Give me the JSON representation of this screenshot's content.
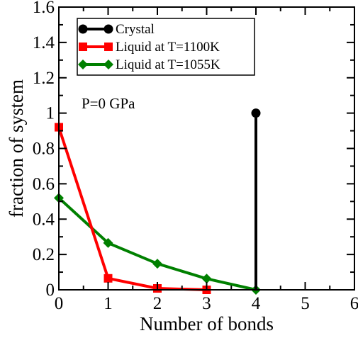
{
  "chart_data": {
    "type": "line",
    "xlabel": "Number of bonds",
    "ylabel": "fraction of system",
    "xlim": [
      0,
      6
    ],
    "ylim": [
      0,
      1.6
    ],
    "x_ticks": [
      0,
      1,
      2,
      3,
      4,
      5,
      6
    ],
    "x_tick_labels": [
      "0",
      "1",
      "2",
      "3",
      "4",
      "5",
      "6"
    ],
    "y_ticks": [
      0,
      0.2,
      0.4,
      0.6,
      0.8,
      1.0,
      1.2,
      1.4,
      1.6
    ],
    "y_tick_labels": [
      "0",
      "0.2",
      "0.4",
      "0.6",
      "0.8",
      "1",
      "1.2",
      "1.4",
      "1.6"
    ],
    "grid": false,
    "legend_position": "top-left",
    "annotation": "P=0 GPa",
    "series": [
      {
        "name": "Crystal",
        "color": "#000000",
        "marker": "circle",
        "style": "stem",
        "x": [
          4
        ],
        "y": [
          1.0
        ]
      },
      {
        "name": "Liquid at T=1100K",
        "color": "#ff0000",
        "marker": "square",
        "x": [
          0,
          1,
          2,
          3
        ],
        "y": [
          0.92,
          0.065,
          0.008,
          0.0
        ]
      },
      {
        "name": "Liquid at T=1055K",
        "color": "#008000",
        "marker": "diamond",
        "x": [
          0,
          1,
          2,
          3,
          4
        ],
        "y": [
          0.52,
          0.265,
          0.148,
          0.063,
          0.0
        ]
      }
    ]
  }
}
